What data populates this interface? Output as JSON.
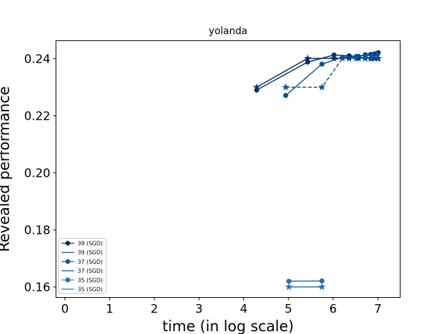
{
  "chart_data": {
    "type": "line",
    "title": "yolanda",
    "xlabel": "time (in log scale)",
    "ylabel": "Revealed performance",
    "xlim": [
      -0.2,
      7.5
    ],
    "ylim": [
      0.1563,
      0.2463
    ],
    "xticks": [
      0,
      1,
      2,
      3,
      4,
      5,
      6,
      7
    ],
    "yticks": [
      0.16,
      0.18,
      0.2,
      0.22,
      0.24
    ],
    "xtick_labels": [
      "0",
      "1",
      "2",
      "3",
      "4",
      "5",
      "6",
      "7"
    ],
    "ytick_labels": [
      "0.16",
      "0.18",
      "0.20",
      "0.22",
      "0.24"
    ],
    "grid": false,
    "legend_position": "lower-left",
    "series": [
      {
        "name": "39 (SGD)",
        "color": "#08306b",
        "marker": "circle",
        "linestyle": "solid",
        "x": [
          4.29,
          5.43,
          6.02,
          6.36,
          6.57,
          6.72,
          6.84,
          6.93,
          7.01
        ],
        "y": [
          0.229,
          0.2388,
          0.2413,
          0.241,
          0.2408,
          0.2414,
          0.2415,
          0.2417,
          0.2421
        ]
      },
      {
        "name": "39 (SGD)",
        "color": "#08306b",
        "marker": "star",
        "linestyle": "solid",
        "x": [
          4.29,
          5.43,
          6.02,
          6.36,
          6.57,
          6.72,
          6.84,
          6.93,
          7.01
        ],
        "y": [
          0.23,
          0.2401,
          0.2401,
          0.2401,
          0.2401,
          0.2401,
          0.2401,
          0.2401,
          0.2401
        ]
      },
      {
        "name": "37 (SGD)",
        "color": "#08519c",
        "marker": "circle",
        "linestyle": "solid",
        "x": [
          4.94,
          5.75,
          6.21,
          6.52,
          6.72,
          6.87,
          6.99
        ],
        "y": [
          0.2271,
          0.2381,
          0.2405,
          0.2408,
          0.2411,
          0.2413,
          0.2415
        ]
      },
      {
        "name": "37 (SGD)",
        "color": "#08519c",
        "marker": "star",
        "linestyle": "dashed",
        "x": [
          4.94,
          5.75,
          6.21,
          6.52,
          6.72,
          6.87,
          6.99
        ],
        "y": [
          0.23,
          0.23,
          0.2401,
          0.2401,
          0.2401,
          0.2401,
          0.2401
        ]
      },
      {
        "name": "35 (SGD)",
        "color": "#2171b5",
        "marker": "circle",
        "linestyle": "solid",
        "x": [
          5.01,
          5.75
        ],
        "y": [
          0.162,
          0.1621
        ]
      },
      {
        "name": "35 (SGD)",
        "color": "#2171b5",
        "marker": "star",
        "linestyle": "solid",
        "x": [
          5.01,
          5.75
        ],
        "y": [
          0.16,
          0.16
        ]
      }
    ]
  }
}
